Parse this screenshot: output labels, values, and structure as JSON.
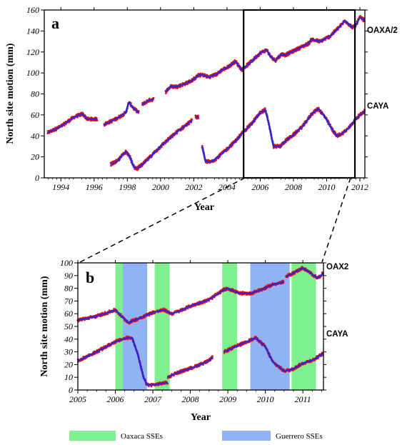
{
  "colors": {
    "oaxaca_sse": "#7ef08f",
    "guerrero_sse": "#8fb3f5",
    "data_points": "#ff0000",
    "model_line": "#2a2ad6",
    "zoom_box": "#000000"
  },
  "legend": {
    "oaxaca_label": "Oaxaca SSEs",
    "guerrero_label": "Guerrero SSEs"
  },
  "chart_data": [
    {
      "panel": "a",
      "type": "scatter",
      "xlabel": "Year",
      "ylabel": "North site motion (mm)",
      "xlim": [
        1993,
        2012.3
      ],
      "ylim": [
        0,
        160
      ],
      "xticks": [
        1994,
        1996,
        1998,
        2000,
        2002,
        2004,
        2006,
        2008,
        2010,
        2012
      ],
      "yticks": [
        0,
        20,
        40,
        60,
        80,
        100,
        120,
        140,
        160
      ],
      "zoom_box": [
        2005,
        2011.7
      ],
      "series": [
        {
          "name": "OAXA/2",
          "segments": [
            [
              [
                1993.2,
                43
              ],
              [
                1994,
                49
              ],
              [
                1994.8,
                58
              ],
              [
                1995.3,
                61
              ],
              [
                1995.6,
                56
              ],
              [
                1996.2,
                56
              ]
            ],
            [
              [
                1996.6,
                51
              ],
              [
                1997.3,
                56
              ],
              [
                1997.9,
                62
              ],
              [
                1998.1,
                72
              ],
              [
                1998.4,
                66
              ],
              [
                1998.7,
                62
              ]
            ],
            [
              [
                1998.9,
                70
              ],
              [
                1999.3,
                74
              ],
              [
                1999.6,
                75
              ]
            ],
            [
              [
                2000.3,
                82
              ],
              [
                2000.6,
                87
              ],
              [
                2001.0,
                87
              ],
              [
                2001.5,
                90
              ],
              [
                2001.9,
                93
              ],
              [
                2002.3,
                98
              ],
              [
                2002.6,
                98
              ],
              [
                2002.9,
                96
              ],
              [
                2003.4,
                99
              ],
              [
                2003.7,
                103
              ],
              [
                2004.0,
                105
              ],
              [
                2004.5,
                111
              ],
              [
                2004.7,
                107
              ],
              [
                2004.9,
                103
              ],
              [
                2005.4,
                110
              ],
              [
                2006.0,
                119
              ],
              [
                2006.4,
                122
              ],
              [
                2006.6,
                116
              ],
              [
                2006.9,
                112
              ],
              [
                2007.3,
                118
              ],
              [
                2007.5,
                117
              ],
              [
                2008.0,
                121
              ],
              [
                2008.9,
                128
              ],
              [
                2009.1,
                132
              ],
              [
                2009.6,
                130
              ],
              [
                2010.2,
                135
              ],
              [
                2010.9,
                146
              ],
              [
                2011.1,
                150
              ],
              [
                2011.5,
                144
              ],
              [
                2011.7,
                144
              ],
              [
                2012.0,
                153
              ],
              [
                2012.3,
                150
              ]
            ]
          ]
        },
        {
          "name": "CAYA",
          "segments": [
            [
              [
                1997.0,
                13
              ],
              [
                1997.4,
                16
              ],
              [
                1997.9,
                25
              ],
              [
                1998.1,
                22
              ],
              [
                1998.4,
                10
              ],
              [
                1998.6,
                9
              ]
            ],
            [
              [
                1998.6,
                9
              ],
              [
                1999.0,
                14
              ],
              [
                1999.5,
                22
              ],
              [
                2000.0,
                30
              ],
              [
                2000.5,
                37
              ],
              [
                2001.0,
                44
              ],
              [
                2001.6,
                51
              ],
              [
                2001.9,
                55
              ]
            ],
            [
              [
                2002.1,
                58
              ],
              [
                2002.3,
                58
              ]
            ],
            [
              [
                2002.5,
                30
              ],
              [
                2002.7,
                16
              ],
              [
                2003.0,
                15
              ],
              [
                2003.4,
                19
              ],
              [
                2003.9,
                26
              ],
              [
                2004.5,
                35
              ],
              [
                2005.0,
                44
              ],
              [
                2005.5,
                52
              ],
              [
                2006.0,
                62
              ],
              [
                2006.3,
                65
              ],
              [
                2006.5,
                53
              ],
              [
                2006.8,
                30
              ],
              [
                2007.2,
                30
              ],
              [
                2007.5,
                35
              ],
              [
                2008.0,
                41
              ],
              [
                2008.6,
                50
              ],
              [
                2009.1,
                61
              ],
              [
                2009.5,
                66
              ],
              [
                2009.9,
                58
              ],
              [
                2010.3,
                47
              ],
              [
                2010.6,
                40
              ],
              [
                2010.9,
                42
              ],
              [
                2011.3,
                47
              ],
              [
                2011.8,
                57
              ],
              [
                2012.3,
                64
              ]
            ]
          ]
        }
      ],
      "labels": {
        "panel_letter": "a",
        "series_top": "OAXA/2",
        "series_bottom": "CAYA"
      }
    },
    {
      "panel": "b",
      "type": "scatter",
      "xlabel": "Year",
      "ylabel": "North site motion (mm)",
      "xlim": [
        2005,
        2011.55
      ],
      "ylim": [
        0,
        100
      ],
      "xticks": [
        2005,
        2006,
        2007,
        2008,
        2009,
        2010,
        2011
      ],
      "yticks": [
        0,
        10,
        20,
        30,
        40,
        50,
        60,
        70,
        80,
        90,
        100
      ],
      "oaxaca_sses": [
        [
          2006.0,
          2006.2
        ],
        [
          2007.05,
          2007.45
        ],
        [
          2008.85,
          2009.25
        ],
        [
          2010.7,
          2011.35
        ]
      ],
      "guerrero_sses": [
        [
          2006.2,
          2006.85
        ],
        [
          2009.6,
          2010.65
        ]
      ],
      "series": [
        {
          "name": "OAX2",
          "segments": [
            [
              [
                2005.0,
                55
              ],
              [
                2005.5,
                58
              ],
              [
                2006.0,
                63
              ],
              [
                2006.2,
                57
              ],
              [
                2006.35,
                53
              ],
              [
                2006.6,
                56
              ],
              [
                2007.0,
                61
              ],
              [
                2007.3,
                63
              ],
              [
                2007.5,
                60
              ],
              [
                2007.7,
                62
              ],
              [
                2008.0,
                66
              ],
              [
                2008.5,
                71
              ],
              [
                2008.9,
                79
              ],
              [
                2009.0,
                80
              ],
              [
                2009.3,
                76
              ],
              [
                2009.6,
                76
              ],
              [
                2009.9,
                79
              ],
              [
                2010.2,
                83
              ],
              [
                2010.5,
                85
              ]
            ],
            [
              [
                2010.55,
                89
              ],
              [
                2011.0,
                96
              ],
              [
                2011.2,
                92
              ],
              [
                2011.4,
                88
              ],
              [
                2011.55,
                92
              ]
            ]
          ]
        },
        {
          "name": "CAYA",
          "segments": [
            [
              [
                2005.0,
                23
              ],
              [
                2005.5,
                30
              ],
              [
                2006.0,
                38
              ],
              [
                2006.3,
                41
              ],
              [
                2006.45,
                41
              ],
              [
                2006.6,
                28
              ],
              [
                2006.75,
                10
              ],
              [
                2006.85,
                4
              ],
              [
                2007.0,
                4
              ],
              [
                2007.2,
                5
              ],
              [
                2007.4,
                6
              ]
            ],
            [
              [
                2007.4,
                10
              ],
              [
                2007.6,
                13
              ],
              [
                2008.0,
                17
              ],
              [
                2008.5,
                23
              ],
              [
                2008.6,
                26
              ]
            ],
            [
              [
                2008.9,
                30
              ],
              [
                2009.2,
                34
              ],
              [
                2009.5,
                38
              ],
              [
                2009.75,
                41
              ],
              [
                2010.0,
                34
              ],
              [
                2010.2,
                22
              ],
              [
                2010.5,
                15
              ],
              [
                2010.7,
                16
              ],
              [
                2011.0,
                21
              ],
              [
                2011.3,
                24
              ],
              [
                2011.55,
                29
              ]
            ]
          ]
        }
      ],
      "labels": {
        "panel_letter": "b",
        "series_top": "OAX2",
        "series_bottom": "CAYA"
      }
    }
  ]
}
